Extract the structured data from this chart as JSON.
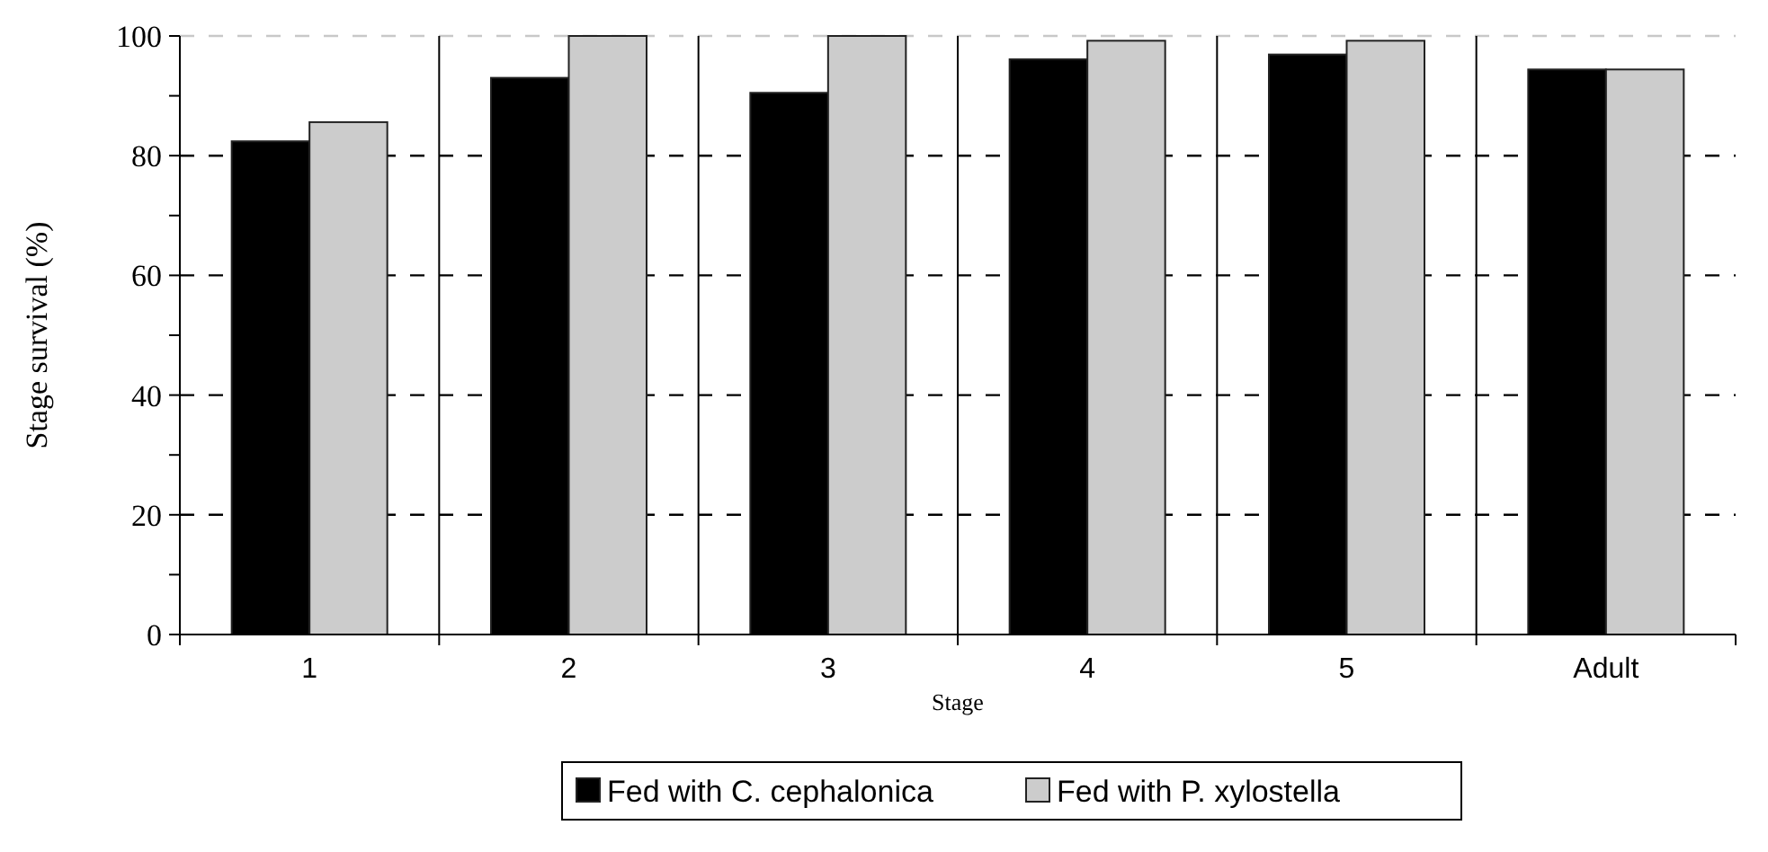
{
  "chart_data": {
    "type": "bar",
    "xlabel": "Stage",
    "ylabel": "Stage survival (%)",
    "categories": [
      "1",
      "2",
      "3",
      "4",
      "5",
      "Adult"
    ],
    "series": [
      {
        "name": "Fed with C. cephalonica",
        "color": "#000000",
        "values": [
          82.4,
          93.0,
          90.5,
          96.1,
          96.9,
          94.4
        ]
      },
      {
        "name": "Fed with P. xylostella",
        "color": "#cccccc",
        "values": [
          85.6,
          100,
          100,
          99.2,
          99.2,
          94.4
        ]
      }
    ],
    "ylim": [
      0,
      100
    ],
    "yticks": [
      0,
      {
        "value": 10,
        "label": null
      },
      20,
      {
        "value": 30,
        "label": null
      },
      40,
      {
        "value": 50,
        "label": null
      },
      60,
      {
        "value": 70,
        "label": null
      },
      80,
      {
        "value": 90,
        "label": null
      },
      100
    ],
    "grid": true,
    "legend": "bottom"
  }
}
